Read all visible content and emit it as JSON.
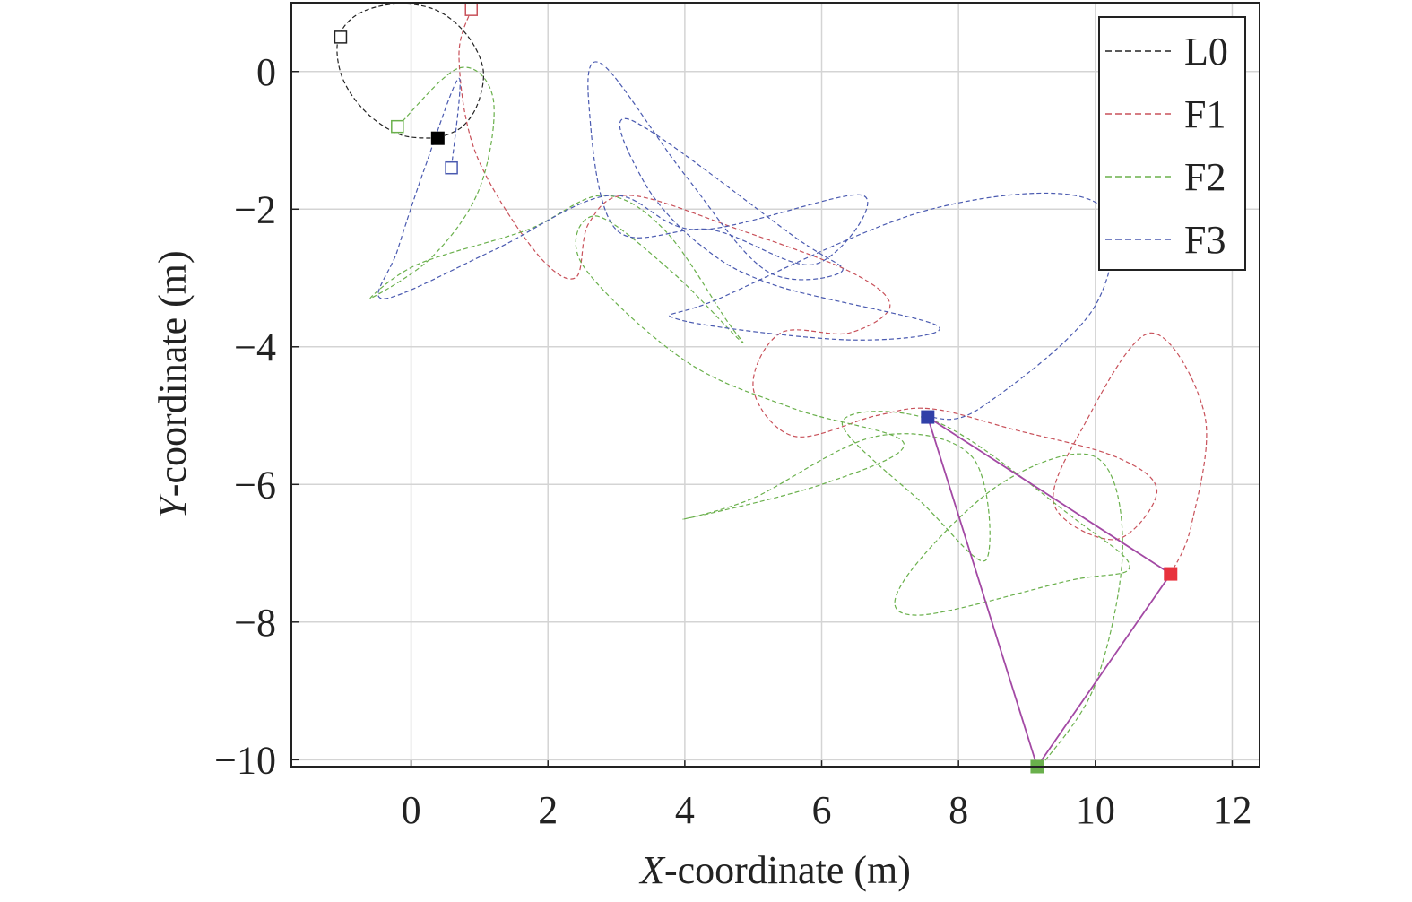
{
  "chart_data": {
    "type": "line",
    "title": "",
    "xlabel_italic": "X",
    "xlabel_rest": "-coordinate (m)",
    "ylabel_italic": "Y",
    "ylabel_rest": "-coordinate (m)",
    "xlim": [
      -1.75,
      12.4
    ],
    "ylim": [
      -10.1,
      1.0
    ],
    "xticks": [
      0,
      2,
      4,
      6,
      8,
      10,
      12
    ],
    "xtick_labels": [
      "0",
      "2",
      "4",
      "6",
      "8",
      "10",
      "12"
    ],
    "yticks": [
      0,
      -2,
      -4,
      -6,
      -8,
      -10
    ],
    "ytick_labels": [
      "0",
      "−2",
      "−4",
      "−6",
      "−8",
      "−10"
    ],
    "grid": true,
    "legend_position": "top-right",
    "series": [
      {
        "name": "L0",
        "color": "#222222",
        "style": "solid",
        "points": [
          [
            0.39,
            -0.97
          ],
          [
            -0.15,
            -0.92
          ],
          [
            -0.65,
            -0.6
          ],
          [
            -1.0,
            -0.1
          ],
          [
            -1.07,
            0.45
          ],
          [
            -0.8,
            0.82
          ],
          [
            -0.25,
            0.98
          ],
          [
            0.35,
            0.9
          ],
          [
            0.8,
            0.55
          ],
          [
            1.05,
            0.05
          ],
          [
            0.98,
            -0.45
          ],
          [
            0.75,
            -0.8
          ],
          [
            0.39,
            -0.97
          ]
        ],
        "start": [
          -1.03,
          0.5
        ],
        "end": [
          0.39,
          -0.97
        ]
      },
      {
        "name": "F1",
        "color": "#c8515a",
        "style": "dashed",
        "points": [
          [
            0.88,
            0.9
          ],
          [
            0.7,
            0.2
          ],
          [
            0.95,
            -1.2
          ],
          [
            1.8,
            -2.6
          ],
          [
            2.4,
            -3.0
          ],
          [
            2.6,
            -2.2
          ],
          [
            3.2,
            -1.8
          ],
          [
            4.8,
            -2.3
          ],
          [
            6.4,
            -2.9
          ],
          [
            7.0,
            -3.4
          ],
          [
            6.4,
            -3.8
          ],
          [
            5.4,
            -3.8
          ],
          [
            5.0,
            -4.6
          ],
          [
            5.6,
            -5.3
          ],
          [
            6.8,
            -5.0
          ],
          [
            7.6,
            -4.9
          ],
          [
            8.8,
            -5.2
          ],
          [
            10.3,
            -5.6
          ],
          [
            10.9,
            -6.1
          ],
          [
            10.3,
            -6.8
          ],
          [
            9.4,
            -6.3
          ],
          [
            9.8,
            -5.2
          ],
          [
            10.8,
            -3.8
          ],
          [
            11.6,
            -5.0
          ],
          [
            11.4,
            -6.6
          ],
          [
            11.1,
            -7.3
          ]
        ],
        "start": [
          0.88,
          0.9
        ],
        "end": [
          11.1,
          -7.3
        ]
      },
      {
        "name": "F2",
        "color": "#6ab04c",
        "style": "dashed",
        "points": [
          [
            -0.2,
            -0.8
          ],
          [
            0.7,
            0.05
          ],
          [
            1.2,
            -0.4
          ],
          [
            1.0,
            -1.7
          ],
          [
            0.3,
            -2.7
          ],
          [
            -0.6,
            -3.3
          ],
          [
            0.1,
            -2.8
          ],
          [
            1.7,
            -2.3
          ],
          [
            2.8,
            -1.8
          ],
          [
            3.7,
            -2.3
          ],
          [
            4.6,
            -3.6
          ],
          [
            4.8,
            -3.9
          ],
          [
            3.8,
            -2.9
          ],
          [
            2.7,
            -2.1
          ],
          [
            2.5,
            -2.8
          ],
          [
            4.0,
            -4.2
          ],
          [
            5.6,
            -4.9
          ],
          [
            7.2,
            -5.4
          ],
          [
            6.0,
            -6.0
          ],
          [
            4.0,
            -6.5
          ],
          [
            5.0,
            -6.2
          ],
          [
            6.8,
            -5.3
          ],
          [
            8.2,
            -5.6
          ],
          [
            8.4,
            -7.1
          ],
          [
            7.5,
            -6.3
          ],
          [
            6.3,
            -5.1
          ],
          [
            7.7,
            -5.1
          ],
          [
            9.7,
            -6.5
          ],
          [
            10.5,
            -7.2
          ],
          [
            9.6,
            -7.4
          ],
          [
            7.4,
            -7.9
          ],
          [
            7.2,
            -7.4
          ],
          [
            8.6,
            -6.0
          ],
          [
            10.0,
            -5.6
          ],
          [
            10.4,
            -6.9
          ],
          [
            10.0,
            -8.9
          ],
          [
            9.2,
            -10.1
          ]
        ],
        "start": [
          -0.2,
          -0.8
        ],
        "end": [
          9.15,
          -10.1
        ]
      },
      {
        "name": "F3",
        "color": "#4a5ab0",
        "style": "dashed",
        "points": [
          [
            0.59,
            -1.4
          ],
          [
            0.7,
            -0.1
          ],
          [
            0.2,
            -1.4
          ],
          [
            -0.2,
            -2.6
          ],
          [
            -0.4,
            -3.3
          ],
          [
            1.2,
            -2.6
          ],
          [
            2.9,
            -1.8
          ],
          [
            4.2,
            -2.3
          ],
          [
            6.6,
            -1.8
          ],
          [
            5.9,
            -2.8
          ],
          [
            4.4,
            -2.3
          ],
          [
            3.0,
            -2.3
          ],
          [
            2.6,
            -0.5
          ],
          [
            2.8,
            0.1
          ],
          [
            4.0,
            -1.5
          ],
          [
            5.2,
            -2.9
          ],
          [
            6.3,
            -2.9
          ],
          [
            5.6,
            -2.4
          ],
          [
            3.2,
            -0.7
          ],
          [
            3.4,
            -1.6
          ],
          [
            4.2,
            -2.5
          ],
          [
            5.3,
            -3.1
          ],
          [
            7.7,
            -3.7
          ],
          [
            6.4,
            -3.9
          ],
          [
            3.9,
            -3.6
          ],
          [
            4.5,
            -3.3
          ],
          [
            7.6,
            -2.0
          ],
          [
            10.0,
            -1.9
          ],
          [
            10.0,
            -3.4
          ],
          [
            8.3,
            -4.9
          ],
          [
            7.55,
            -5.02
          ]
        ],
        "start": [
          0.59,
          -1.4
        ],
        "end": [
          7.55,
          -5.02
        ]
      },
      {
        "name": "",
        "color": "#a349a4",
        "style": "solid",
        "points": [
          [
            7.55,
            -5.02
          ],
          [
            11.1,
            -7.3
          ],
          [
            9.15,
            -10.1
          ],
          [
            7.55,
            -5.02
          ]
        ]
      }
    ]
  }
}
